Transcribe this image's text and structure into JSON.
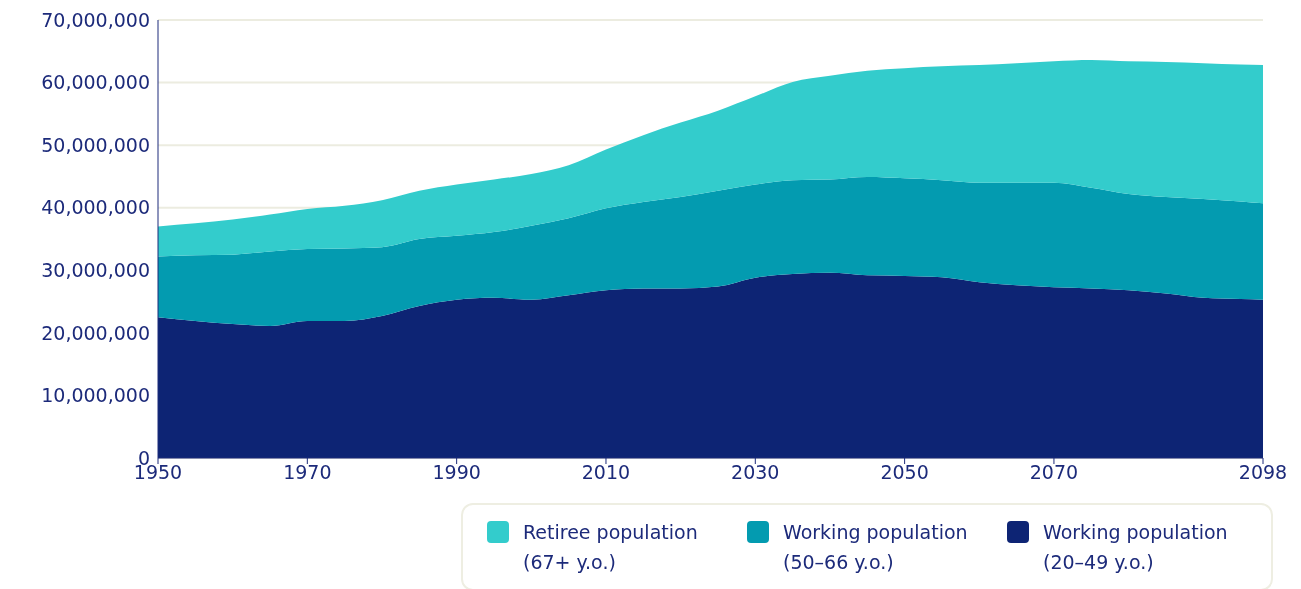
{
  "chart_data": {
    "type": "area",
    "stacked": true,
    "grid": "y",
    "legend": "bottom right",
    "x": [
      1950,
      1955,
      1960,
      1965,
      1970,
      1975,
      1980,
      1985,
      1990,
      1995,
      2000,
      2005,
      2010,
      2015,
      2020,
      2025,
      2030,
      2035,
      2040,
      2045,
      2050,
      2055,
      2060,
      2065,
      2070,
      2075,
      2080,
      2085,
      2090,
      2095,
      2098
    ],
    "xlim": [
      1950,
      2098
    ],
    "xticks": [
      1950,
      1970,
      1990,
      2010,
      2030,
      2050,
      2070,
      2098
    ],
    "ylim": [
      0,
      70000000
    ],
    "yticks": [
      {
        "value": 0,
        "label": "0"
      },
      {
        "value": 10000000,
        "label": "10,000,000"
      },
      {
        "value": 20000000,
        "label": "20,000,000"
      },
      {
        "value": 30000000,
        "label": "30,000,000"
      },
      {
        "value": 40000000,
        "label": "40,000,000"
      },
      {
        "value": 50000000,
        "label": "50,000,000"
      },
      {
        "value": 60000000,
        "label": "60,000,000"
      },
      {
        "value": 70000000,
        "label": "70,000,000"
      }
    ],
    "series": [
      {
        "name": "Working population (20–49 y.o.)",
        "color": "#0d2474",
        "values": [
          22500000,
          21900000,
          21400000,
          21100000,
          21900000,
          21900000,
          22700000,
          24300000,
          25300000,
          25600000,
          25300000,
          26000000,
          26800000,
          27100000,
          27100000,
          27400000,
          28800000,
          29400000,
          29600000,
          29200000,
          29100000,
          28900000,
          28100000,
          27600000,
          27300000,
          27100000,
          26800000,
          26300000,
          25600000,
          25400000,
          25300000
        ]
      },
      {
        "name": "Working population (50–66 y.o.)",
        "color": "#039bb0",
        "values": [
          9700000,
          10500000,
          11100000,
          11900000,
          11500000,
          11600000,
          11000000,
          10700000,
          10200000,
          10500000,
          11800000,
          12300000,
          13100000,
          13800000,
          14600000,
          15300000,
          14900000,
          15000000,
          14900000,
          15700000,
          15600000,
          15500000,
          15900000,
          16400000,
          16700000,
          16100000,
          15400000,
          15400000,
          15800000,
          15600000,
          15400000
        ]
      },
      {
        "name": "Retiree population (67+ y.o.)",
        "color": "#33cccc",
        "values": [
          4800000,
          5100000,
          5600000,
          5900000,
          6400000,
          6800000,
          7500000,
          7700000,
          8200000,
          8400000,
          8300000,
          8500000,
          9400000,
          10700000,
          11900000,
          12800000,
          14100000,
          15700000,
          16600000,
          17000000,
          17600000,
          18200000,
          18800000,
          19100000,
          19400000,
          20400000,
          21200000,
          21600000,
          21700000,
          21900000,
          22100000
        ]
      }
    ]
  }
}
